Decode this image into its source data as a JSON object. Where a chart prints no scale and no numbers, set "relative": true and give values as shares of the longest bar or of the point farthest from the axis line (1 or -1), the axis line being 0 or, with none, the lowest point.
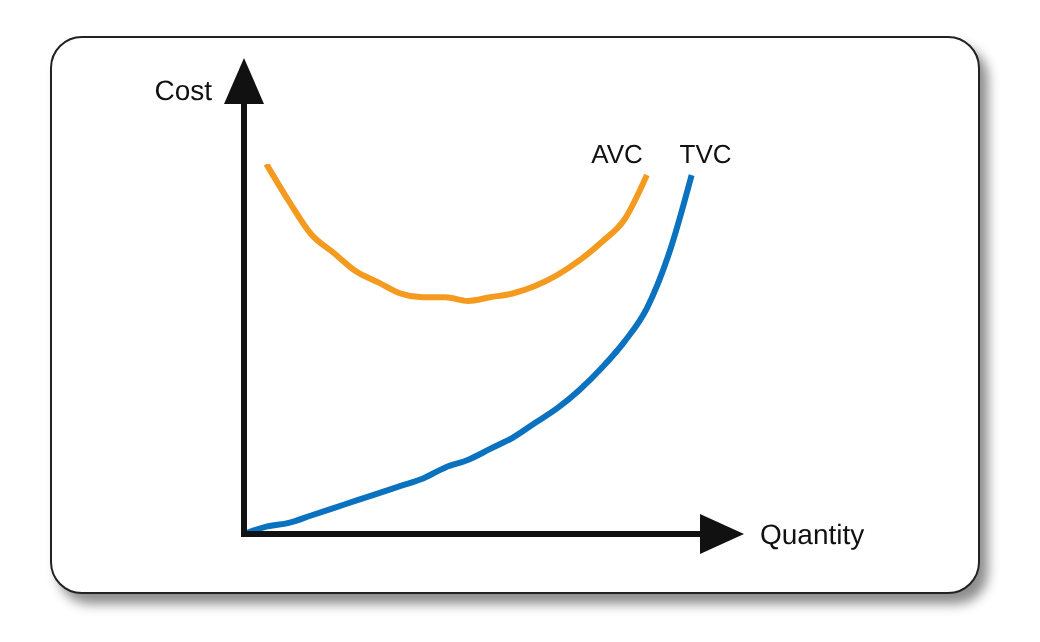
{
  "chart_data": {
    "type": "line",
    "relative": true,
    "xlabel": "Quantity",
    "ylabel": "Cost",
    "categories": [
      null,
      null,
      null,
      null,
      null,
      null,
      null,
      null,
      null,
      null,
      null,
      null,
      null,
      null,
      null,
      null,
      null,
      null,
      null,
      null,
      null,
      null
    ],
    "series": [
      {
        "name": "AVC",
        "color": "#f39a1f",
        "values": [
          null,
          1.0,
          0.9,
          0.81,
          0.76,
          0.71,
          0.68,
          0.65,
          0.64,
          0.64,
          0.63,
          0.64,
          0.65,
          0.67,
          0.7,
          0.74,
          0.79,
          0.85,
          0.97,
          null,
          null,
          null
        ]
      },
      {
        "name": "TVC",
        "color": "#0b72c0",
        "values": [
          0,
          0.02,
          0.03,
          0.05,
          0.07,
          0.09,
          0.11,
          0.13,
          0.15,
          0.18,
          0.2,
          0.23,
          0.26,
          0.3,
          0.34,
          0.39,
          0.45,
          0.52,
          0.61,
          0.76,
          0.97,
          null
        ]
      }
    ],
    "marker": "none",
    "line_style": "solid",
    "legend": false,
    "grid": false
  }
}
